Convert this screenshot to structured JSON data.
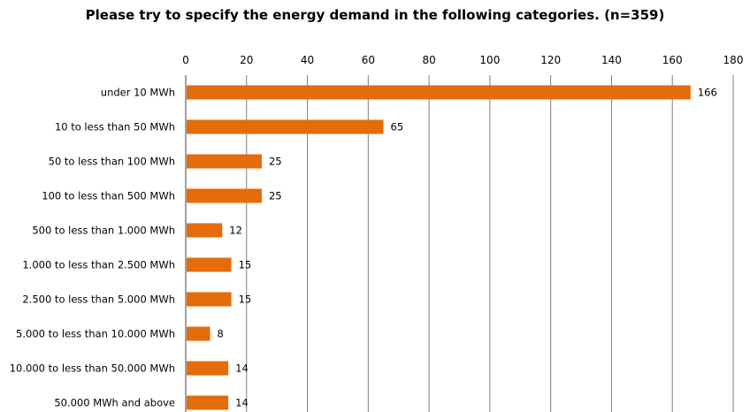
{
  "chart_data": {
    "type": "bar",
    "orientation": "horizontal",
    "title": "Please try to specify the energy demand in the following categories. (n=359)",
    "categories": [
      "under 10 MWh",
      "10 to less than 50 MWh",
      "50 to less than 100 MWh",
      "100 to less than 500 MWh",
      "500 to less than 1.000 MWh",
      "1.000 to less than 2.500 MWh",
      "2.500 to less than 5.000 MWh",
      "5.000 to less than 10.000 MWh",
      "10.000 to less than 50.000 MWh",
      "50.000 MWh and above"
    ],
    "values": [
      166,
      65,
      25,
      25,
      12,
      15,
      15,
      8,
      14,
      14
    ],
    "xlim": [
      0,
      180
    ],
    "xticks": [
      0,
      20,
      40,
      60,
      80,
      100,
      120,
      140,
      160,
      180
    ],
    "xaxis_position": "top",
    "grid": "vertical",
    "data_labels": true,
    "bar_color": "#E46C0A",
    "grid_color": "#7f7f7f",
    "legend": "none"
  }
}
